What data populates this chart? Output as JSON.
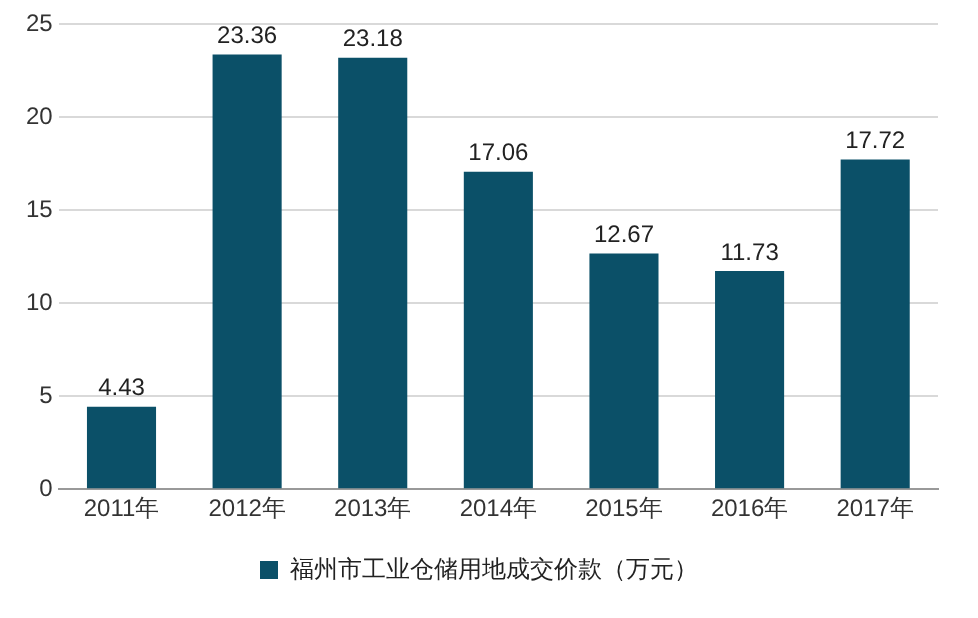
{
  "chart_data": {
    "type": "bar",
    "categories": [
      "2011年",
      "2012年",
      "2013年",
      "2014年",
      "2015年",
      "2016年",
      "2017年"
    ],
    "series": [
      {
        "name": "福州市工业仓储用地成交价款（万元）",
        "color": "#0b5068",
        "values": [
          4.43,
          23.36,
          23.18,
          17.06,
          12.67,
          11.73,
          17.72
        ]
      }
    ],
    "ylim": [
      0,
      25
    ],
    "yticks": [
      0,
      5,
      10,
      15,
      20,
      25
    ],
    "grid": "y",
    "legend": "bottom",
    "data_labels": true
  }
}
